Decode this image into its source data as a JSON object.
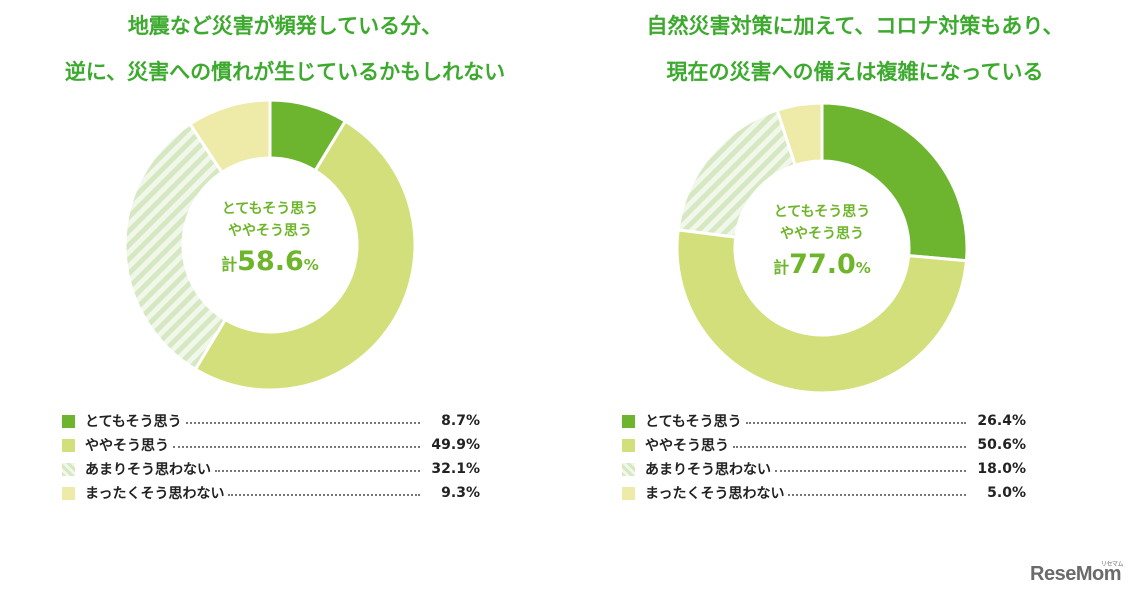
{
  "colors": {
    "title": "#3daa2f",
    "center_text": "#6fb52c",
    "strong": "#6db52f",
    "somewhat": "#d3df7a",
    "not_much_stripe": "#d6e8c2",
    "not_at_all": "#eeeaa8"
  },
  "logo": {
    "text": "ReseMom",
    "sup": "リセマム"
  },
  "charts": [
    {
      "title_line1": "地震など災害が頻発している分、",
      "title_line2": "逆に、災害への慣れが生じているかもしれない",
      "center": {
        "line1": "とてもそう思う",
        "line2": "ややそう思う",
        "prefix": "計",
        "total": "58.6",
        "unit": "%"
      }
    },
    {
      "title_line1": "自然災害対策に加えて、コロナ対策もあり、",
      "title_line2": "現在の災害への備えは複雑になっている",
      "center": {
        "line1": "とてもそう思う",
        "line2": "ややそう思う",
        "prefix": "計",
        "total": "77.0",
        "unit": "%"
      }
    }
  ],
  "chart_data": [
    {
      "type": "pie",
      "categories": [
        "とてもそう思う",
        "ややそう思う",
        "あまりそう思わない",
        "まったくそう思わない"
      ],
      "values": [
        8.7,
        49.9,
        32.1,
        9.3
      ],
      "value_labels": [
        "8.7%",
        "49.9%",
        "32.1%",
        "9.3%"
      ],
      "legend": "bottom"
    },
    {
      "type": "pie",
      "categories": [
        "とてもそう思う",
        "ややそう思う",
        "あまりそう思わない",
        "まったくそう思わない"
      ],
      "values": [
        26.4,
        50.6,
        18.0,
        5.0
      ],
      "value_labels": [
        "26.4%",
        "50.6%",
        "18.0%",
        "5.0%"
      ],
      "legend": "bottom"
    }
  ]
}
